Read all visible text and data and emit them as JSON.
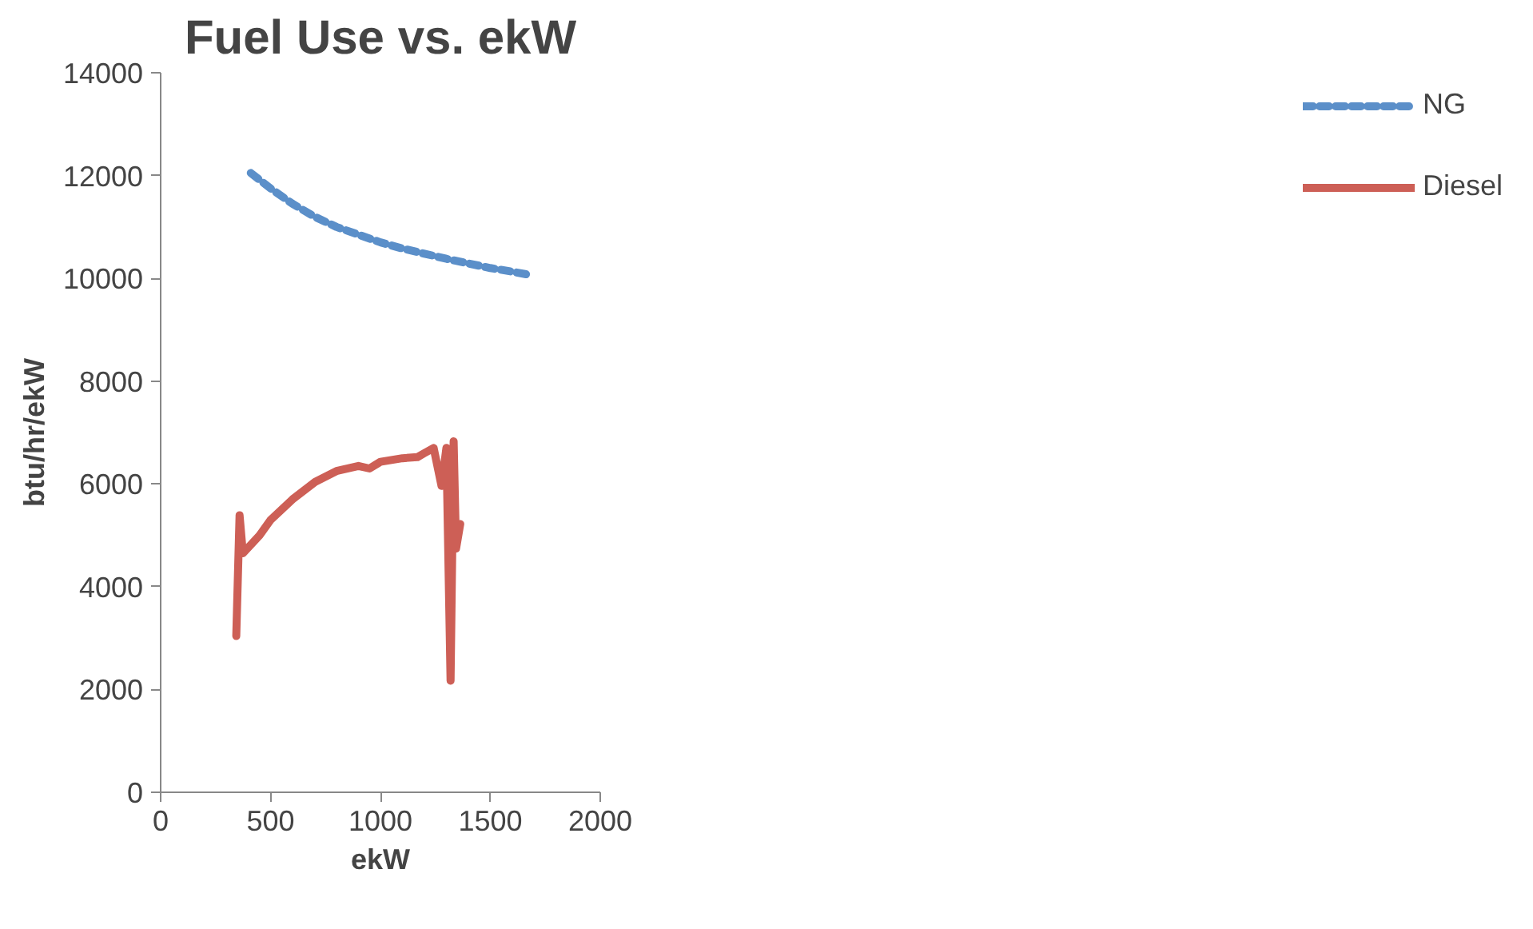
{
  "chart_data": {
    "type": "line",
    "title": "Fuel Use vs. ekW",
    "xlabel": "ekW",
    "ylabel": "btu/hr/ekW",
    "xlim": [
      0,
      2000
    ],
    "xticks": [
      0,
      500,
      1000,
      1500,
      2000
    ],
    "ylim": [
      0,
      14000
    ],
    "yticks": [
      0,
      2000,
      4000,
      6000,
      8000,
      10000,
      12000,
      14000
    ],
    "grid": false,
    "legend": "right",
    "series": [
      {
        "name": "NG",
        "color": "#5b8fc9",
        "line_style": "dashed",
        "x": [
          410,
          500,
          600,
          700,
          800,
          900,
          1000,
          1100,
          1200,
          1300,
          1400,
          1500,
          1600,
          1674
        ],
        "values": [
          12050,
          11750,
          11450,
          11200,
          11000,
          10850,
          10700,
          10580,
          10480,
          10380,
          10290,
          10200,
          10130,
          10070
        ]
      },
      {
        "name": "Diesel",
        "color": "#cd5f56",
        "line_style": "solid",
        "x": [
          344,
          359,
          374,
          450,
          500,
          600,
          703,
          800,
          900,
          950,
          1000,
          1100,
          1168,
          1200,
          1242,
          1278,
          1300,
          1319,
          1333,
          1344,
          1363
        ],
        "values": [
          3040,
          5390,
          4650,
          5000,
          5300,
          5700,
          6040,
          6250,
          6350,
          6300,
          6430,
          6500,
          6520,
          6600,
          6700,
          5960,
          6700,
          2170,
          6830,
          4740,
          5220
        ]
      }
    ]
  }
}
